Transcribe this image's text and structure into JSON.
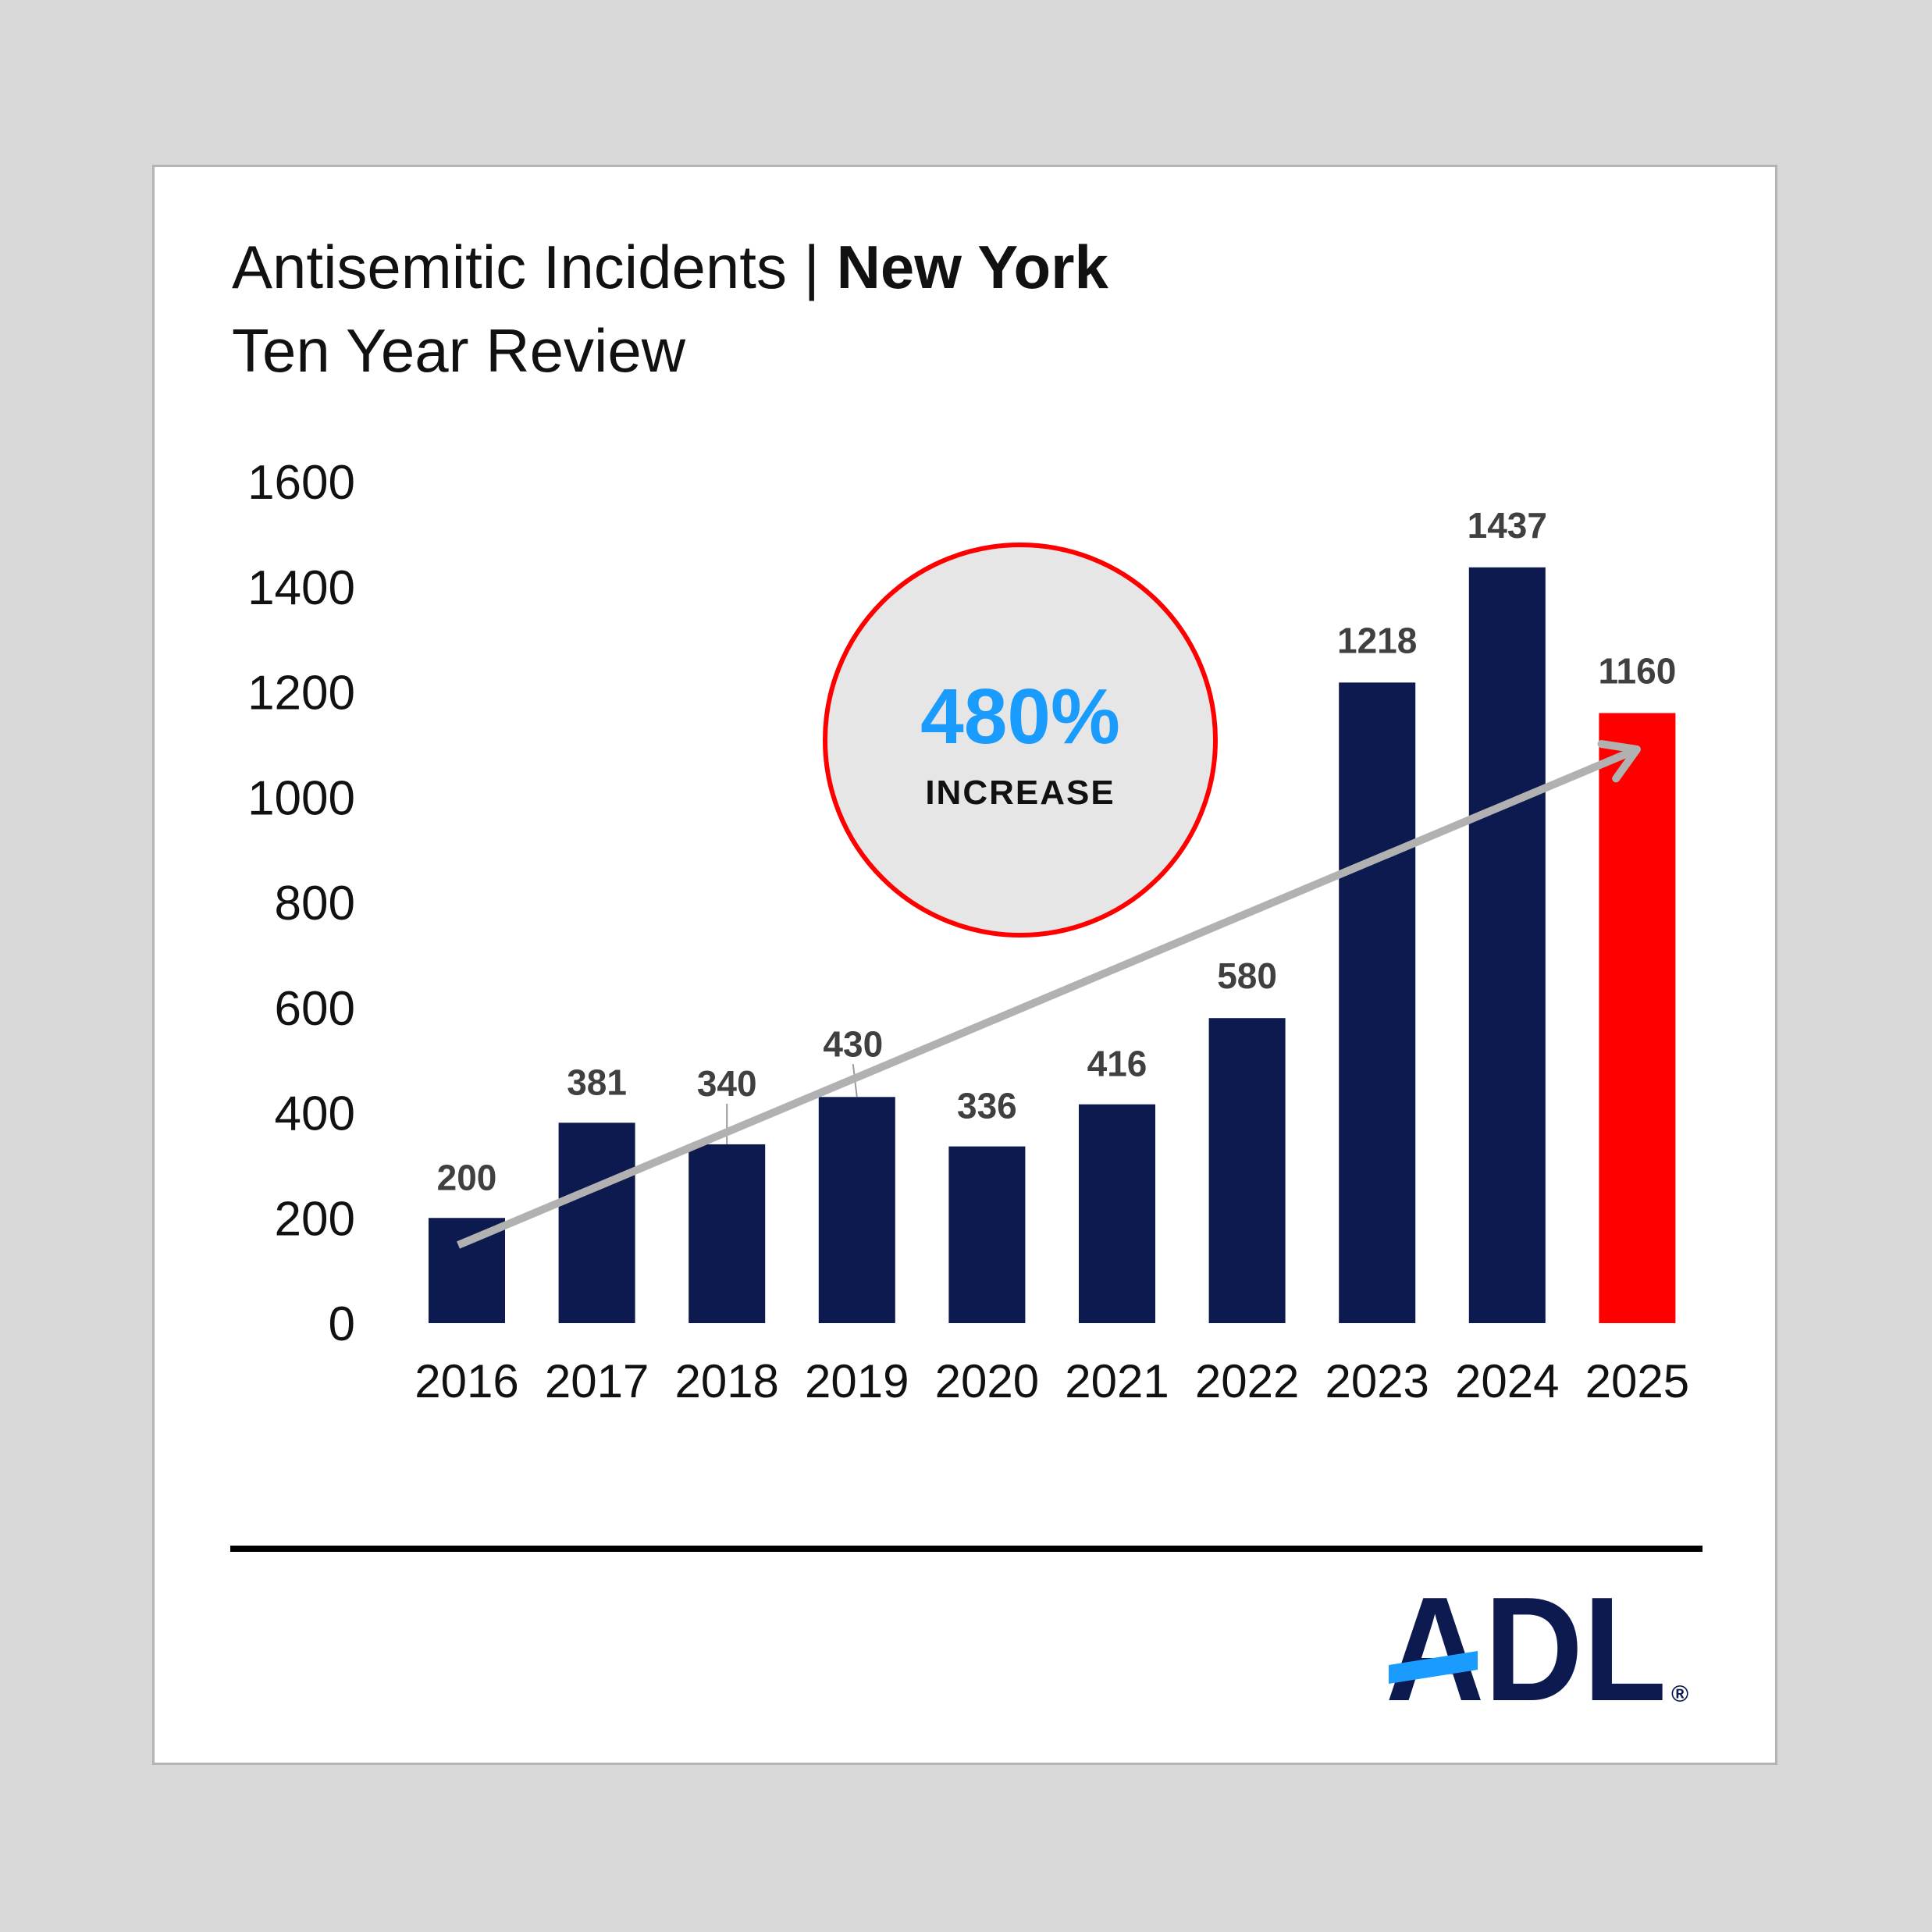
{
  "title": {
    "prefix": "Antisemitic Incidents |",
    "emphasis": "New York"
  },
  "subtitle": "Ten Year Review",
  "callout": {
    "value": "480%",
    "label": "INCREASE"
  },
  "brand": {
    "logo_text": "ADL",
    "registered_mark": "®"
  },
  "colors": {
    "bar": "#0d1a4f",
    "highlight_bar": "#ff0000",
    "trend_arrow": "#b1b1b1",
    "callout_fill": "#e6e6e6",
    "callout_border": "#ff0000",
    "callout_value": "#1a9cff",
    "logo": "#0d1a4f",
    "logo_accent": "#1a9cff"
  },
  "chart_data": {
    "type": "bar",
    "title": "Antisemitic Incidents | New York",
    "subtitle": "Ten Year Review",
    "xlabel": "",
    "ylabel": "",
    "categories": [
      "2016",
      "2017",
      "2018",
      "2019",
      "2020",
      "2021",
      "2022",
      "2023",
      "2024",
      "2025"
    ],
    "values": [
      200,
      381,
      340,
      430,
      336,
      416,
      580,
      1218,
      1437,
      1160
    ],
    "data_labels": [
      "200",
      "381",
      "340",
      "430",
      "336",
      "416",
      "580",
      "1218",
      "1437",
      "1160"
    ],
    "highlight_category": "2025",
    "ylim": [
      0,
      1600
    ],
    "yticks": [
      "0",
      "200",
      "400",
      "600",
      "800",
      "1000",
      "1200",
      "1400",
      "1600"
    ],
    "grid": false,
    "legend": "none",
    "annotations": [
      {
        "text": "480%",
        "subtext": "INCREASE",
        "type": "circle-callout"
      },
      {
        "type": "trend-arrow",
        "from": "2016",
        "to": "2025"
      }
    ]
  }
}
